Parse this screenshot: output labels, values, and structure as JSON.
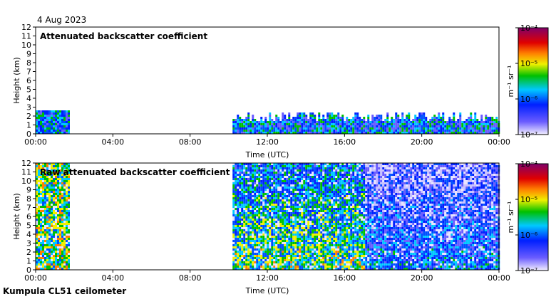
{
  "date": "4 Aug 2023",
  "footer": "Kumpula CL51 ceilometer",
  "chart_data": [
    {
      "type": "heatmap",
      "title": "Attenuated backscatter coefficient",
      "xlabel": "Time (UTC)",
      "ylabel": "Height (km)",
      "x_ticks": [
        "00:00",
        "04:00",
        "08:00",
        "12:00",
        "16:00",
        "20:00",
        "00:00"
      ],
      "y_ticks": [
        0,
        1,
        2,
        3,
        4,
        5,
        6,
        7,
        8,
        9,
        10,
        11,
        12
      ],
      "xlim_hours": [
        0,
        24
      ],
      "ylim_km": [
        0,
        12
      ],
      "data_coverage_hours": [
        [
          0,
          1.7
        ],
        [
          10.2,
          24
        ]
      ],
      "colorbar": {
        "label": "m⁻¹ sr⁻¹",
        "scale": "log",
        "range": [
          1e-07,
          0.0001
        ],
        "ticks": [
          {
            "value": 0.0001,
            "label": "10⁻⁴"
          },
          {
            "value": 1e-05,
            "label": "10⁻⁵"
          },
          {
            "value": 1e-06,
            "label": "10⁻⁶"
          },
          {
            "value": 1e-07,
            "label": "10⁻⁷"
          }
        ]
      }
    },
    {
      "type": "heatmap",
      "title": "Raw attenuated backscatter coefficient",
      "xlabel": "Time (UTC)",
      "ylabel": "Height (km)",
      "x_ticks": [
        "00:00",
        "04:00",
        "08:00",
        "12:00",
        "16:00",
        "20:00",
        "00:00"
      ],
      "y_ticks": [
        0,
        1,
        2,
        3,
        4,
        5,
        6,
        7,
        8,
        9,
        10,
        11,
        12
      ],
      "xlim_hours": [
        0,
        24
      ],
      "ylim_km": [
        0,
        12
      ],
      "data_coverage_hours": [
        [
          0,
          1.7
        ],
        [
          10.2,
          24
        ]
      ],
      "colorbar": {
        "label": "m⁻¹ sr⁻¹",
        "scale": "log",
        "range": [
          1e-07,
          0.0001
        ],
        "ticks": [
          {
            "value": 0.0001,
            "label": "10⁻⁴"
          },
          {
            "value": 1e-05,
            "label": "10⁻⁵"
          },
          {
            "value": 1e-06,
            "label": "10⁻⁶"
          },
          {
            "value": 1e-07,
            "label": "10⁻⁷"
          }
        ]
      }
    }
  ]
}
